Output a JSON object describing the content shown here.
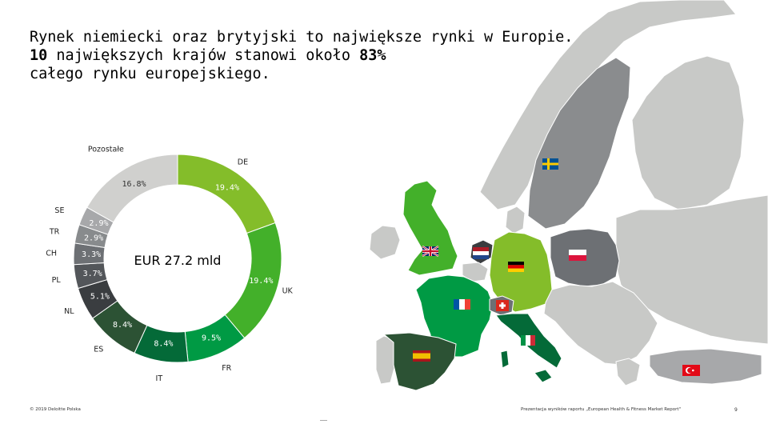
{
  "headline": {
    "line1": "Rynek niemiecki oraz brytyjski to największe rynki w Europie.",
    "line2_bold_a": "10",
    "line2_mid": " największych krajów stanowi około ",
    "line2_bold_b": "83%",
    "line3": "całego rynku europejskiego."
  },
  "chart_data": {
    "type": "pie",
    "variant": "donut",
    "center_label": "EUR 27.2 mld",
    "slices": [
      {
        "category": "DE",
        "value": 19.4,
        "label": "19.4%",
        "color": "#84bd2a"
      },
      {
        "category": "UK",
        "value": 19.4,
        "label": "19.4%",
        "color": "#43b02a"
      },
      {
        "category": "FR",
        "value": 9.5,
        "label": "9.5%",
        "color": "#009a44"
      },
      {
        "category": "IT",
        "value": 8.4,
        "label": "8.4%",
        "color": "#046a38"
      },
      {
        "category": "ES",
        "value": 8.4,
        "label": "8.4%",
        "color": "#2c5234"
      },
      {
        "category": "NL",
        "value": 5.1,
        "label": "5.1%",
        "color": "#3a3d40"
      },
      {
        "category": "PL",
        "value": 3.7,
        "label": "3.7%",
        "color": "#53565a"
      },
      {
        "category": "CH",
        "value": 3.3,
        "label": "3.3%",
        "color": "#6d7074"
      },
      {
        "category": "TR",
        "value": 2.9,
        "label": "2.9%",
        "color": "#888b8d"
      },
      {
        "category": "SE",
        "value": 2.9,
        "label": "2.9%",
        "color": "#a7a8aa"
      },
      {
        "category": "Pozostałe",
        "value": 16.8,
        "label": "16.8%",
        "color": "#d0d0ce"
      }
    ]
  },
  "map": {
    "colors": {
      "base": "#c8c9c7",
      "sweden": "#8a8c8e",
      "uk": "#43b02a",
      "germany": "#84bd2a",
      "france": "#009a44",
      "italy": "#046a38",
      "spain": "#2c5234",
      "poland": "#6d7074",
      "netherlands": "#3a3d40",
      "switzerland": "#6d7074",
      "turkey": "#a7a8aa"
    },
    "flags": [
      {
        "country": "Sweden",
        "icon": "flag-sweden-icon"
      },
      {
        "country": "United Kingdom",
        "icon": "flag-uk-icon"
      },
      {
        "country": "Netherlands",
        "icon": "flag-netherlands-icon"
      },
      {
        "country": "Germany",
        "icon": "flag-germany-icon"
      },
      {
        "country": "Poland",
        "icon": "flag-poland-icon"
      },
      {
        "country": "France",
        "icon": "flag-france-icon"
      },
      {
        "country": "Switzerland",
        "icon": "flag-switzerland-icon"
      },
      {
        "country": "Italy",
        "icon": "flag-italy-icon"
      },
      {
        "country": "Spain",
        "icon": "flag-spain-icon"
      },
      {
        "country": "Turkey",
        "icon": "flag-turkey-icon"
      }
    ]
  },
  "footer": {
    "copyright": "© 2019 Deloitte Polska",
    "source": "Prezentacja wyników raportu „European Health & Fitness Market Report\"",
    "page_number": "9"
  }
}
